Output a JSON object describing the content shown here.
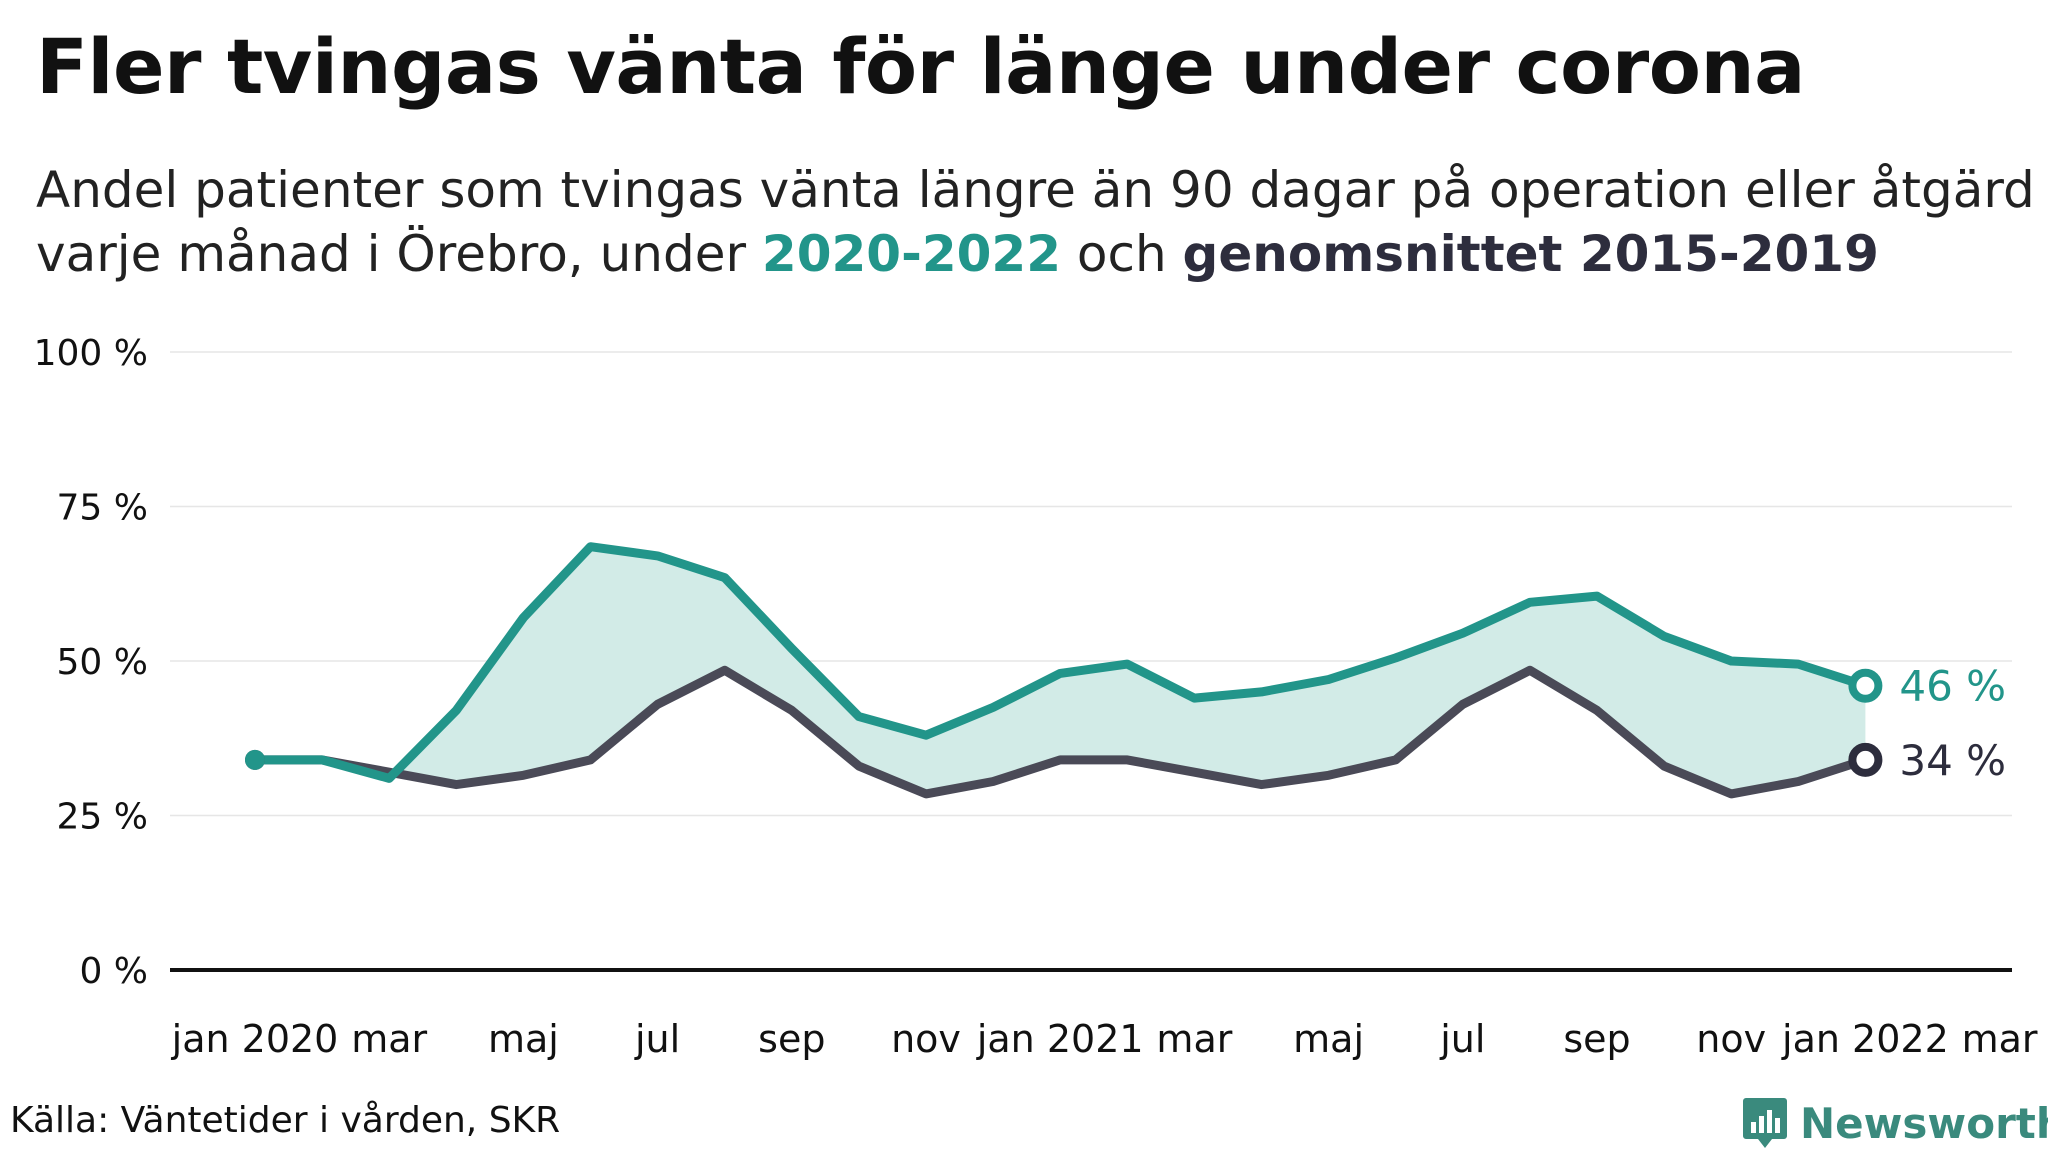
{
  "header": {
    "title": "Fler tvingas vänta för länge under corona",
    "subtitle_line1": "Andel patienter som tvingas vänta längre än 90 dagar på operation eller åtgärd",
    "subtitle_line2_prefix": "varje månad i Örebro, under ",
    "subtitle_line2_hl1": "2020-2022",
    "subtitle_line2_mid": " och ",
    "subtitle_line2_hl2": "genomsnittet 2015-2019"
  },
  "footer": {
    "source": "Källa: Väntetider i vården, SKR",
    "brand": "Newsworthy"
  },
  "colors": {
    "teal": "#22958a",
    "dark": "#4a4a57",
    "fill": "#d2ebe7",
    "grid": "#e6e6e6",
    "axis": "#111111"
  },
  "chart_data": {
    "type": "line",
    "x": [
      "2020-01",
      "2020-02",
      "2020-03",
      "2020-04",
      "2020-05",
      "2020-06",
      "2020-07",
      "2020-08",
      "2020-09",
      "2020-10",
      "2020-11",
      "2020-12",
      "2021-01",
      "2021-02",
      "2021-03",
      "2021-04",
      "2021-05",
      "2021-06",
      "2021-07",
      "2021-08",
      "2021-09",
      "2021-10",
      "2021-11",
      "2021-12",
      "2022-01"
    ],
    "xlim": [
      "2020-01",
      "2022-03"
    ],
    "x_tick_labels": [
      "jan 2020",
      "mar",
      "maj",
      "jul",
      "sep",
      "nov",
      "jan 2021",
      "mar",
      "maj",
      "jul",
      "sep",
      "nov",
      "jan 2022",
      "mar"
    ],
    "y_tick_labels": [
      "0 %",
      "25 %",
      "50 %",
      "75 %",
      "100 %"
    ],
    "ylim": [
      0,
      100
    ],
    "grid": true,
    "series": [
      {
        "name": "2020-2022",
        "color": "#22958a",
        "values": [
          34,
          34,
          31,
          42,
          57,
          68.5,
          67,
          63.5,
          52,
          41,
          38,
          42.5,
          48,
          49.5,
          44,
          45,
          47,
          50.5,
          54.5,
          59.5,
          60.5,
          54,
          50,
          49.5,
          46
        ]
      },
      {
        "name": "genomsnittet 2015-2019",
        "color": "#4a4a57",
        "values": [
          34,
          34,
          32,
          30,
          31.5,
          34,
          43,
          48.5,
          42,
          33,
          28.5,
          30.5,
          34,
          34,
          32,
          30,
          31.5,
          34,
          43,
          48.5,
          42,
          33,
          28.5,
          30.5,
          34
        ]
      }
    ],
    "end_labels": [
      "46 %",
      "34 %"
    ]
  }
}
